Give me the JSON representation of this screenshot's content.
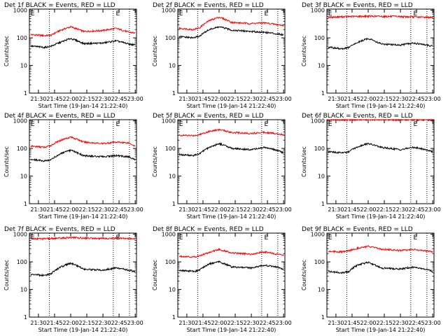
{
  "chart_data": [
    {
      "type": "line",
      "title": "Det 1f BLACK = Events, RED = LLD",
      "xlabel": "Start Time (19-Jan-14 21:22:40)",
      "ylabel": "Counts/sec",
      "ylog": true,
      "ylim": [
        1,
        1100
      ],
      "xlim": [
        21.36,
        23.02
      ],
      "x_ticks": [
        "21:30",
        "21:45",
        "22:00",
        "22:15",
        "22:30",
        "22:45",
        "23:00"
      ],
      "x_tick_values": [
        21.5,
        21.75,
        22.0,
        22.25,
        22.5,
        22.75,
        23.0
      ],
      "y_ticks": [
        "1",
        "10",
        "100",
        "1000"
      ],
      "y_tick_values": [
        1,
        10,
        100,
        1000
      ],
      "vlines": [
        21.67,
        22.66,
        22.91
      ],
      "markers": [
        {
          "label": "E",
          "x": 21.38
        },
        {
          "label": "E",
          "x": 22.7
        }
      ],
      "series": [
        {
          "color": "#ff0000",
          "x": [
            21.4,
            21.6,
            21.7,
            21.85,
            22.0,
            22.2,
            22.5,
            22.7,
            22.9,
            23.0
          ],
          "values": [
            130,
            120,
            125,
            190,
            250,
            170,
            185,
            220,
            160,
            150
          ]
        },
        {
          "color": "#000000",
          "x": [
            21.4,
            21.6,
            21.7,
            21.85,
            22.0,
            22.2,
            22.5,
            22.7,
            22.9,
            23.0
          ],
          "values": [
            50,
            45,
            50,
            70,
            95,
            62,
            65,
            78,
            60,
            55
          ]
        }
      ]
    },
    {
      "type": "line",
      "title": "Det 2f BLACK = Events, RED = LLD",
      "xlabel": "Start Time (19-Jan-14 21:22:40)",
      "ylabel": "Counts/sec",
      "ylog": true,
      "ylim": [
        1,
        1100
      ],
      "xlim": [
        21.36,
        23.02
      ],
      "x_ticks": [
        "21:30",
        "21:45",
        "22:00",
        "22:15",
        "22:30",
        "22:45",
        "23:00"
      ],
      "x_tick_values": [
        21.5,
        21.75,
        22.0,
        22.25,
        22.5,
        22.75,
        23.0
      ],
      "y_ticks": [
        "1",
        "10",
        "100",
        "1000"
      ],
      "y_tick_values": [
        1,
        10,
        100,
        1000
      ],
      "vlines": [
        21.67,
        22.66,
        22.91
      ],
      "markers": [
        {
          "label": "E",
          "x": 21.38
        },
        {
          "label": "E",
          "x": 22.7
        }
      ],
      "series": [
        {
          "color": "#ff0000",
          "x": [
            21.4,
            21.6,
            21.7,
            21.85,
            22.0,
            22.2,
            22.5,
            22.7,
            22.9,
            23.0
          ],
          "values": [
            220,
            200,
            230,
            420,
            560,
            360,
            330,
            350,
            300,
            280
          ]
        },
        {
          "color": "#000000",
          "x": [
            21.4,
            21.6,
            21.7,
            21.85,
            22.0,
            22.2,
            22.5,
            22.7,
            22.9,
            23.0
          ],
          "values": [
            110,
            100,
            115,
            200,
            250,
            190,
            170,
            160,
            140,
            130
          ]
        }
      ]
    },
    {
      "type": "line",
      "title": "Det 3f BLACK = Events, RED = LLD",
      "xlabel": "Start Time (19-Jan-14 21:22:40)",
      "ylabel": "Counts/sec",
      "ylog": true,
      "ylim": [
        1,
        1100
      ],
      "xlim": [
        21.36,
        23.02
      ],
      "x_ticks": [
        "21:30",
        "21:45",
        "22:00",
        "22:15",
        "22:30",
        "22:45",
        "23:00"
      ],
      "x_tick_values": [
        21.5,
        21.75,
        22.0,
        22.25,
        22.5,
        22.75,
        23.0
      ],
      "y_ticks": [
        "1",
        "10",
        "100",
        "1000"
      ],
      "y_tick_values": [
        1,
        10,
        100,
        1000
      ],
      "vlines": [
        21.67,
        22.66,
        22.91
      ],
      "markers": [
        {
          "label": "E",
          "x": 21.38
        },
        {
          "label": "E",
          "x": 22.7
        }
      ],
      "series": [
        {
          "color": "#ff0000",
          "x": [
            21.4,
            21.6,
            21.7,
            21.85,
            22.0,
            22.2,
            22.5,
            22.7,
            22.9,
            23.0
          ],
          "values": [
            560,
            580,
            590,
            600,
            610,
            600,
            590,
            570,
            560,
            550
          ]
        },
        {
          "color": "#000000",
          "x": [
            21.4,
            21.6,
            21.7,
            21.85,
            22.0,
            22.2,
            22.5,
            22.7,
            22.9,
            23.0
          ],
          "values": [
            45,
            40,
            45,
            70,
            95,
            60,
            55,
            65,
            55,
            50
          ]
        }
      ]
    },
    {
      "type": "line",
      "title": "Det 4f BLACK = Events, RED = LLD",
      "xlabel": "Start Time (19-Jan-14 21:22:40)",
      "ylabel": "Counts/sec",
      "ylog": true,
      "ylim": [
        1,
        1100
      ],
      "xlim": [
        21.36,
        23.02
      ],
      "x_ticks": [
        "21:30",
        "21:45",
        "22:00",
        "22:15",
        "22:30",
        "22:45",
        "23:00"
      ],
      "x_tick_values": [
        21.5,
        21.75,
        22.0,
        22.25,
        22.5,
        22.75,
        23.0
      ],
      "y_ticks": [
        "1",
        "10",
        "100",
        "1000"
      ],
      "y_tick_values": [
        1,
        10,
        100,
        1000
      ],
      "vlines": [
        21.67,
        22.66,
        22.91
      ],
      "markers": [
        {
          "label": "E",
          "x": 21.38
        },
        {
          "label": "E",
          "x": 22.7
        }
      ],
      "series": [
        {
          "color": "#ff0000",
          "x": [
            21.4,
            21.6,
            21.7,
            21.85,
            22.0,
            22.2,
            22.5,
            22.7,
            22.9,
            23.0
          ],
          "values": [
            120,
            110,
            130,
            200,
            260,
            170,
            150,
            170,
            160,
            120
          ]
        },
        {
          "color": "#000000",
          "x": [
            21.4,
            21.6,
            21.7,
            21.85,
            22.0,
            22.2,
            22.5,
            22.7,
            22.9,
            23.0
          ],
          "values": [
            40,
            35,
            40,
            65,
            85,
            55,
            50,
            55,
            50,
            40
          ]
        }
      ]
    },
    {
      "type": "line",
      "title": "Det 5f BLACK = Events, RED = LLD",
      "xlabel": "Start Time (19-Jan-14 21:22:40)",
      "ylabel": "Counts/sec",
      "ylog": true,
      "ylim": [
        1,
        1100
      ],
      "xlim": [
        21.36,
        23.02
      ],
      "x_ticks": [
        "21:30",
        "21:45",
        "22:00",
        "22:15",
        "22:30",
        "22:45",
        "23:00"
      ],
      "x_tick_values": [
        21.5,
        21.75,
        22.0,
        22.25,
        22.5,
        22.75,
        23.0
      ],
      "y_ticks": [
        "1",
        "10",
        "100",
        "1000"
      ],
      "y_tick_values": [
        1,
        10,
        100,
        1000
      ],
      "vlines": [
        21.67,
        22.66,
        22.91
      ],
      "markers": [
        {
          "label": "E",
          "x": 21.38
        },
        {
          "label": "E",
          "x": 22.7
        }
      ],
      "series": [
        {
          "color": "#ff0000",
          "x": [
            21.4,
            21.6,
            21.7,
            21.85,
            22.0,
            22.2,
            22.5,
            22.7,
            22.9,
            23.0
          ],
          "values": [
            300,
            290,
            320,
            420,
            480,
            380,
            350,
            390,
            340,
            320
          ]
        },
        {
          "color": "#000000",
          "x": [
            21.4,
            21.6,
            21.7,
            21.85,
            22.0,
            22.2,
            22.5,
            22.7,
            22.9,
            23.0
          ],
          "values": [
            60,
            55,
            65,
            110,
            150,
            100,
            90,
            110,
            85,
            70
          ]
        }
      ]
    },
    {
      "type": "line",
      "title": "Det 6f BLACK = Events, RED = LLD",
      "xlabel": "Start Time (19-Jan-14 21:22:40)",
      "ylabel": "Counts/sec",
      "ylog": true,
      "ylim": [
        1,
        1100
      ],
      "xlim": [
        21.36,
        23.02
      ],
      "x_ticks": [
        "21:30",
        "21:45",
        "22:00",
        "22:15",
        "22:30",
        "22:45",
        "23:00"
      ],
      "x_tick_values": [
        21.5,
        21.75,
        22.0,
        22.25,
        22.5,
        22.75,
        23.0
      ],
      "y_ticks": [
        "1",
        "10",
        "100",
        "1000"
      ],
      "y_tick_values": [
        1,
        10,
        100,
        1000
      ],
      "vlines": [
        21.67,
        22.66,
        22.91
      ],
      "markers": [
        {
          "label": "E",
          "x": 21.38
        },
        {
          "label": "E",
          "x": 22.7
        }
      ],
      "series": [
        {
          "color": "#ff0000",
          "x": [
            21.4,
            21.6,
            21.7,
            21.85,
            22.0,
            22.2,
            22.5,
            22.7,
            22.9,
            23.0
          ],
          "values": [
            1080,
            1080,
            1085,
            1090,
            1090,
            1085,
            1080,
            1080,
            1080,
            1075
          ]
        },
        {
          "color": "#000000",
          "x": [
            21.4,
            21.6,
            21.7,
            21.85,
            22.0,
            22.2,
            22.5,
            22.7,
            22.9,
            23.0
          ],
          "values": [
            75,
            70,
            75,
            120,
            150,
            110,
            90,
            110,
            90,
            75
          ]
        }
      ]
    },
    {
      "type": "line",
      "title": "Det 7f BLACK = Events, RED = LLD",
      "xlabel": "Start Time (19-Jan-14 21:22:40)",
      "ylabel": "Counts/sec",
      "ylog": true,
      "ylim": [
        1,
        1100
      ],
      "xlim": [
        21.36,
        23.02
      ],
      "x_ticks": [
        "21:30",
        "21:45",
        "22:00",
        "22:15",
        "22:30",
        "22:45",
        "23:00"
      ],
      "x_tick_values": [
        21.5,
        21.75,
        22.0,
        22.25,
        22.5,
        22.75,
        23.0
      ],
      "y_ticks": [
        "1",
        "10",
        "100",
        "1000"
      ],
      "y_tick_values": [
        1,
        10,
        100,
        1000
      ],
      "vlines": [
        21.67,
        22.66,
        22.91
      ],
      "markers": [
        {
          "label": "E",
          "x": 21.38
        },
        {
          "label": "E",
          "x": 22.7
        }
      ],
      "series": [
        {
          "color": "#ff0000",
          "x": [
            21.4,
            21.6,
            21.7,
            21.85,
            22.0,
            22.2,
            22.5,
            22.7,
            22.9,
            23.0
          ],
          "values": [
            700,
            680,
            700,
            720,
            760,
            730,
            700,
            720,
            700,
            690
          ]
        },
        {
          "color": "#000000",
          "x": [
            21.4,
            21.6,
            21.7,
            21.85,
            22.0,
            22.2,
            22.5,
            22.7,
            22.9,
            23.0
          ],
          "values": [
            35,
            32,
            38,
            65,
            90,
            55,
            50,
            60,
            50,
            45
          ]
        }
      ]
    },
    {
      "type": "line",
      "title": "Det 8f BLACK = Events, RED = LLD",
      "xlabel": "Start Time (19-Jan-14 21:22:40)",
      "ylabel": "Counts/sec",
      "ylog": true,
      "ylim": [
        1,
        1100
      ],
      "xlim": [
        21.36,
        23.02
      ],
      "x_ticks": [
        "21:30",
        "21:45",
        "22:00",
        "22:15",
        "22:30",
        "22:45",
        "23:00"
      ],
      "x_tick_values": [
        21.5,
        21.75,
        22.0,
        22.25,
        22.5,
        22.75,
        23.0
      ],
      "y_ticks": [
        "1",
        "10",
        "100",
        "1000"
      ],
      "y_tick_values": [
        1,
        10,
        100,
        1000
      ],
      "vlines": [
        21.67,
        22.66,
        22.91
      ],
      "markers": [
        {
          "label": "E",
          "x": 21.38
        },
        {
          "label": "E",
          "x": 22.7
        }
      ],
      "series": [
        {
          "color": "#ff0000",
          "x": [
            21.4,
            21.6,
            21.7,
            21.85,
            22.0,
            22.2,
            22.5,
            22.7,
            22.9,
            23.0
          ],
          "values": [
            160,
            150,
            165,
            220,
            280,
            210,
            190,
            230,
            190,
            170
          ]
        },
        {
          "color": "#000000",
          "x": [
            21.4,
            21.6,
            21.7,
            21.85,
            22.0,
            22.2,
            22.5,
            22.7,
            22.9,
            23.0
          ],
          "values": [
            50,
            45,
            50,
            85,
            100,
            65,
            60,
            75,
            65,
            55
          ]
        }
      ]
    },
    {
      "type": "line",
      "title": "Det 9f BLACK = Events, RED = LLD",
      "xlabel": "Start Time (19-Jan-14 21:22:40)",
      "ylabel": "Counts/sec",
      "ylog": true,
      "ylim": [
        1,
        1100
      ],
      "xlim": [
        21.36,
        23.02
      ],
      "x_ticks": [
        "21:30",
        "21:45",
        "22:00",
        "22:15",
        "22:30",
        "22:45",
        "23:00"
      ],
      "x_tick_values": [
        21.5,
        21.75,
        22.0,
        22.25,
        22.5,
        22.75,
        23.0
      ],
      "y_ticks": [
        "1",
        "10",
        "100",
        "1000"
      ],
      "y_tick_values": [
        1,
        10,
        100,
        1000
      ],
      "vlines": [
        21.67,
        22.66,
        22.91
      ],
      "markers": [
        {
          "label": "E",
          "x": 21.38
        },
        {
          "label": "E",
          "x": 22.7
        }
      ],
      "series": [
        {
          "color": "#ff0000",
          "x": [
            21.4,
            21.6,
            21.7,
            21.85,
            22.0,
            22.2,
            22.5,
            22.7,
            22.9,
            23.0
          ],
          "values": [
            240,
            230,
            250,
            320,
            360,
            290,
            260,
            280,
            250,
            230
          ]
        },
        {
          "color": "#000000",
          "x": [
            21.4,
            21.6,
            21.7,
            21.85,
            22.0,
            22.2,
            22.5,
            22.7,
            22.9,
            23.0
          ],
          "values": [
            45,
            40,
            45,
            80,
            95,
            60,
            55,
            65,
            55,
            45
          ]
        }
      ]
    }
  ]
}
